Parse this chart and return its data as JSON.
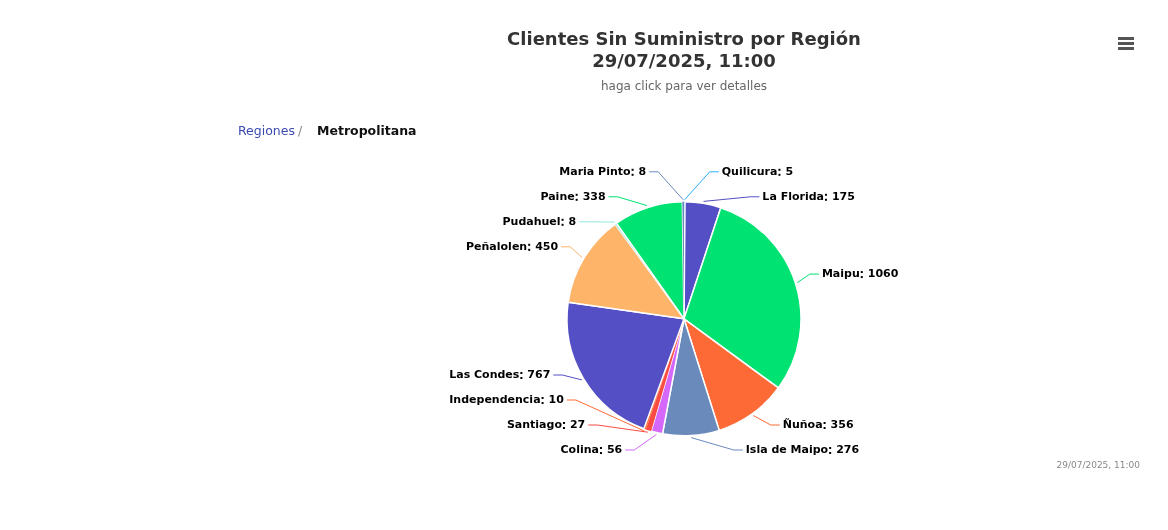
{
  "chart_data": {
    "type": "pie",
    "title": "Clientes Sin Suministro por Región\n29/07/2025, 11:00",
    "subtitle": "haga click para ver detalles",
    "categories": [
      "Quilicura",
      "La Florida",
      "Maipu",
      "Ñuñoa",
      "Isla de Maipo",
      "Colina",
      "Santiago",
      "Independencia",
      "Las Condes",
      "Peñalolen",
      "Pudahuel",
      "Paine",
      "Maria Pinto"
    ],
    "values": [
      5,
      175,
      1060,
      356,
      276,
      56,
      27,
      10,
      767,
      450,
      8,
      338,
      8
    ],
    "colors": [
      "#2caffe",
      "#544fc5",
      "#00e272",
      "#fe6a35",
      "#6b8abc",
      "#d568fb",
      "#fa4b42",
      "#fe6a35",
      "#544fc5",
      "#feb56a",
      "#91e8e1",
      "#00e272",
      "#6b8abc"
    ],
    "data_labels": true,
    "legend": false,
    "annotations": [
      "Regiones",
      "/",
      "Metropolitana",
      "29/07/2025, 11:00"
    ]
  }
}
